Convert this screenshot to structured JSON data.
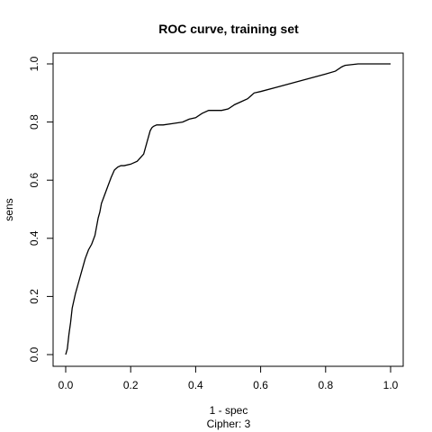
{
  "chart_data": {
    "type": "line",
    "title": "ROC curve, training set",
    "xlabel": "1 - spec",
    "xlabel2": "Cipher:  3",
    "ylabel": "sens",
    "xlim": [
      0,
      1
    ],
    "ylim": [
      0,
      1
    ],
    "x_ticks": [
      "0.0",
      "0.2",
      "0.4",
      "0.6",
      "0.8",
      "1.0"
    ],
    "y_ticks": [
      "0.0",
      "0.2",
      "0.4",
      "0.6",
      "0.8",
      "1.0"
    ],
    "grid": false,
    "legend": "none",
    "series": [
      {
        "color": "#000000",
        "x": [
          0.0,
          0.005,
          0.01,
          0.015,
          0.02,
          0.03,
          0.04,
          0.05,
          0.06,
          0.07,
          0.08,
          0.09,
          0.1,
          0.105,
          0.11,
          0.12,
          0.13,
          0.14,
          0.15,
          0.16,
          0.17,
          0.18,
          0.2,
          0.22,
          0.24,
          0.25,
          0.26,
          0.265,
          0.27,
          0.28,
          0.3,
          0.33,
          0.36,
          0.38,
          0.4,
          0.42,
          0.44,
          0.46,
          0.48,
          0.5,
          0.52,
          0.54,
          0.56,
          0.57,
          0.58,
          0.6,
          0.65,
          0.7,
          0.75,
          0.8,
          0.83,
          0.85,
          0.86,
          0.9,
          0.95,
          1.0
        ],
        "y": [
          0.0,
          0.02,
          0.07,
          0.11,
          0.16,
          0.21,
          0.25,
          0.29,
          0.33,
          0.36,
          0.38,
          0.41,
          0.47,
          0.49,
          0.52,
          0.55,
          0.58,
          0.61,
          0.635,
          0.645,
          0.65,
          0.65,
          0.655,
          0.665,
          0.69,
          0.73,
          0.77,
          0.78,
          0.785,
          0.79,
          0.79,
          0.795,
          0.8,
          0.81,
          0.815,
          0.83,
          0.84,
          0.84,
          0.84,
          0.845,
          0.86,
          0.87,
          0.88,
          0.89,
          0.9,
          0.905,
          0.92,
          0.935,
          0.95,
          0.965,
          0.975,
          0.99,
          0.995,
          1.0,
          1.0,
          1.0
        ]
      }
    ]
  }
}
